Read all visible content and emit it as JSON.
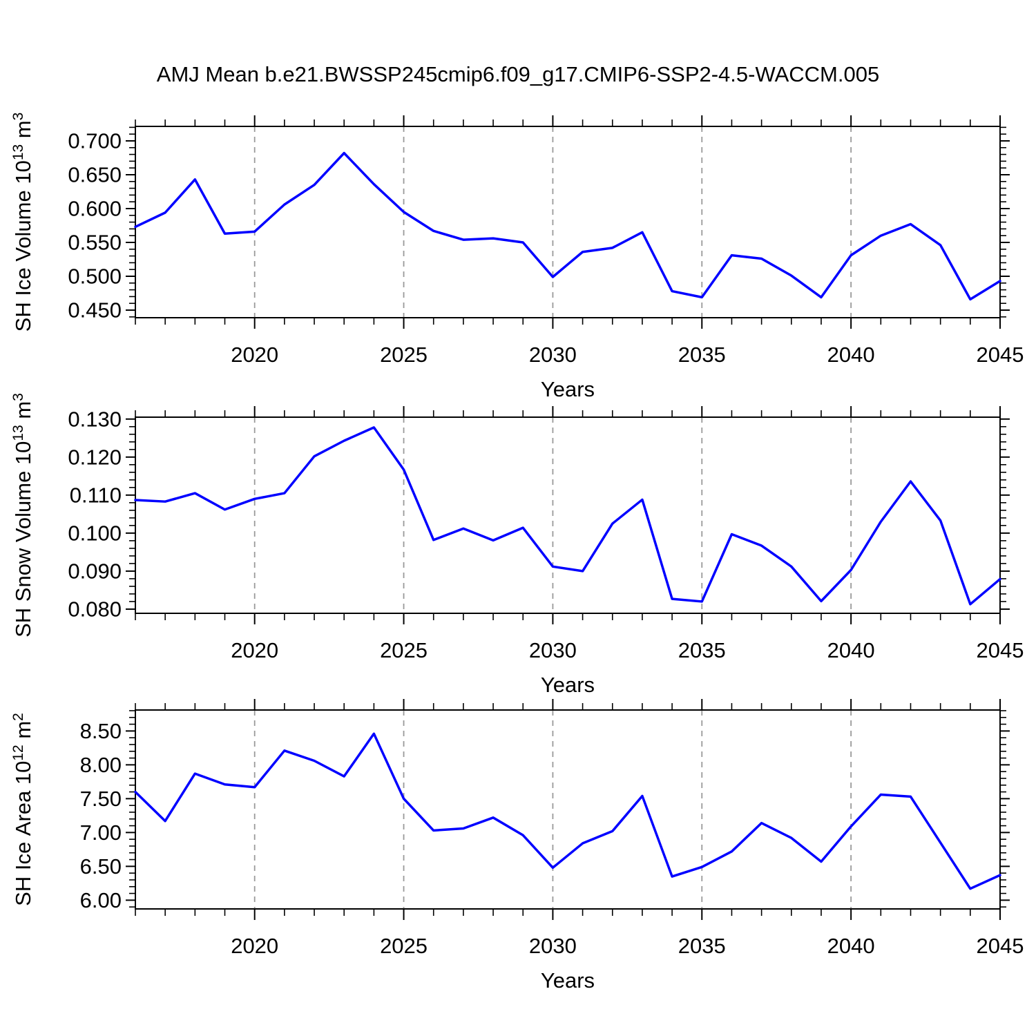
{
  "title": "AMJ Mean b.e21.BWSSP245cmip6.f09_g17.CMIP6-SSP2-4.5-WACCM.005",
  "colors": {
    "line": "#0000ff",
    "grid": "#999999",
    "frame": "#000000",
    "text": "#000000",
    "background": "#ffffff"
  },
  "chart_data": [
    {
      "type": "line",
      "name": "sh-ice-volume",
      "title": "",
      "xlabel": "Years",
      "ylabel": "SH Ice Volume 10^13 m^3",
      "ylabel_parts": [
        {
          "t": "SH Ice Volume 10"
        },
        {
          "t": "13",
          "sup": true
        },
        {
          "t": " m"
        },
        {
          "t": "3",
          "sup": true
        }
      ],
      "x": [
        2016,
        2017,
        2018,
        2019,
        2020,
        2021,
        2022,
        2023,
        2024,
        2025,
        2026,
        2027,
        2028,
        2029,
        2030,
        2031,
        2032,
        2033,
        2034,
        2035,
        2036,
        2037,
        2038,
        2039,
        2040,
        2041,
        2042,
        2043,
        2044,
        2045
      ],
      "values": [
        0.573,
        0.594,
        0.643,
        0.563,
        0.566,
        0.606,
        0.635,
        0.682,
        0.636,
        0.595,
        0.567,
        0.554,
        0.556,
        0.55,
        0.499,
        0.536,
        0.542,
        0.565,
        0.478,
        0.469,
        0.531,
        0.526,
        0.501,
        0.469,
        0.531,
        0.56,
        0.577,
        0.546,
        0.466,
        0.493
      ],
      "xlim": [
        2016,
        2045
      ],
      "ylim": [
        0.4388,
        0.7214
      ],
      "x_major_values": [
        2020,
        2025,
        2030,
        2035,
        2040,
        2045
      ],
      "x_major_labels": [
        "2020",
        "2025",
        "2030",
        "2035",
        "2040",
        "2045"
      ],
      "y_major_values": [
        0.45,
        0.5,
        0.55,
        0.6,
        0.65,
        0.7
      ],
      "y_major_labels": [
        "0.450",
        "0.500",
        "0.550",
        "0.600",
        "0.650",
        "0.700"
      ],
      "y_minor_step": 0.01,
      "grid_x": [
        2020,
        2025,
        2030,
        2035,
        2040
      ],
      "grid": "vertical-dashed",
      "legend": "none"
    },
    {
      "type": "line",
      "name": "sh-snow-volume",
      "title": "",
      "xlabel": "Years",
      "ylabel": "SH Snow Volume 10^13 m^3",
      "ylabel_parts": [
        {
          "t": "SH Snow Volume 10"
        },
        {
          "t": "13",
          "sup": true
        },
        {
          "t": " m"
        },
        {
          "t": "3",
          "sup": true
        }
      ],
      "x": [
        2016,
        2017,
        2018,
        2019,
        2020,
        2021,
        2022,
        2023,
        2024,
        2025,
        2026,
        2027,
        2028,
        2029,
        2030,
        2031,
        2032,
        2033,
        2034,
        2035,
        2036,
        2037,
        2038,
        2039,
        2040,
        2041,
        2042,
        2043,
        2044,
        2045
      ],
      "values": [
        0.1087,
        0.1083,
        0.1105,
        0.1062,
        0.109,
        0.1105,
        0.1202,
        0.1243,
        0.1278,
        0.1167,
        0.0982,
        0.1012,
        0.0981,
        0.1014,
        0.0912,
        0.09,
        0.1025,
        0.1088,
        0.0827,
        0.082,
        0.0997,
        0.0967,
        0.0912,
        0.0821,
        0.0903,
        0.103,
        0.1136,
        0.1033,
        0.0813,
        0.0879
      ],
      "xlim": [
        2016,
        2045
      ],
      "ylim": [
        0.0789,
        0.1305
      ],
      "x_major_values": [
        2020,
        2025,
        2030,
        2035,
        2040,
        2045
      ],
      "x_major_labels": [
        "2020",
        "2025",
        "2030",
        "2035",
        "2040",
        "2045"
      ],
      "y_major_values": [
        0.08,
        0.09,
        0.1,
        0.11,
        0.12,
        0.13
      ],
      "y_major_labels": [
        "0.080",
        "0.090",
        "0.100",
        "0.110",
        "0.120",
        "0.130"
      ],
      "y_minor_step": 0.002,
      "grid_x": [
        2020,
        2025,
        2030,
        2035,
        2040
      ],
      "grid": "vertical-dashed",
      "legend": "none"
    },
    {
      "type": "line",
      "name": "sh-ice-area",
      "title": "",
      "xlabel": "Years",
      "ylabel": "SH Ice Area 10^12 m^2",
      "ylabel_parts": [
        {
          "t": "SH Ice Area 10"
        },
        {
          "t": "12",
          "sup": true
        },
        {
          "t": " m"
        },
        {
          "t": "2",
          "sup": true
        }
      ],
      "x": [
        2016,
        2017,
        2018,
        2019,
        2020,
        2021,
        2022,
        2023,
        2024,
        2025,
        2026,
        2027,
        2028,
        2029,
        2030,
        2031,
        2032,
        2033,
        2034,
        2035,
        2036,
        2037,
        2038,
        2039,
        2040,
        2041,
        2042,
        2043,
        2044,
        2045
      ],
      "values": [
        7.6,
        7.17,
        7.87,
        7.71,
        7.67,
        8.21,
        8.06,
        7.83,
        8.46,
        7.5,
        7.03,
        7.06,
        7.22,
        6.96,
        6.48,
        6.84,
        7.02,
        7.54,
        6.35,
        6.49,
        6.72,
        7.14,
        6.92,
        6.57,
        7.09,
        7.56,
        7.53,
        6.85,
        6.17,
        6.37
      ],
      "xlim": [
        2016,
        2045
      ],
      "ylim": [
        5.871,
        8.81
      ],
      "x_major_values": [
        2020,
        2025,
        2030,
        2035,
        2040,
        2045
      ],
      "x_major_labels": [
        "2020",
        "2025",
        "2030",
        "2035",
        "2040",
        "2045"
      ],
      "y_major_values": [
        6.0,
        6.5,
        7.0,
        7.5,
        8.0,
        8.5
      ],
      "y_major_labels": [
        "6.00",
        "6.50",
        "7.00",
        "7.50",
        "8.00",
        "8.50"
      ],
      "y_minor_step": 0.1,
      "grid_x": [
        2020,
        2025,
        2030,
        2035,
        2040
      ],
      "grid": "vertical-dashed",
      "legend": "none"
    }
  ]
}
